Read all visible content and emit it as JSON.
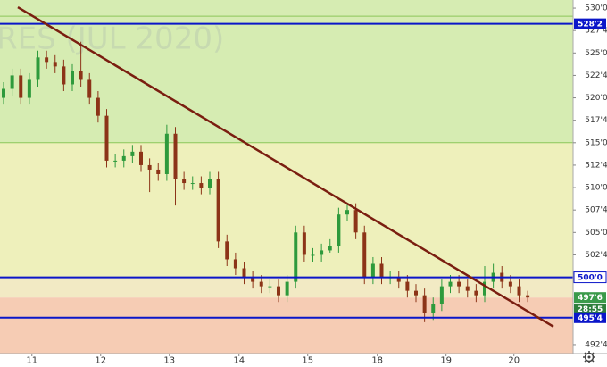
{
  "chart_data": {
    "type": "candlestick",
    "watermark": "RES (JUL 2020)",
    "countdown": "28:55",
    "up_color": "#2e9a3c",
    "down_color": "#8c3418",
    "ylim": [
      491.5,
      530.9
    ],
    "yticks": [
      {
        "value": 530,
        "label": "530'0"
      },
      {
        "value": 527.5,
        "label": "527'4"
      },
      {
        "value": 525,
        "label": "525'0"
      },
      {
        "value": 522.5,
        "label": "522'4"
      },
      {
        "value": 520,
        "label": "520'0"
      },
      {
        "value": 517.5,
        "label": "517'4"
      },
      {
        "value": 515,
        "label": "515'0"
      },
      {
        "value": 512.5,
        "label": "512'4"
      },
      {
        "value": 510,
        "label": "510'0"
      },
      {
        "value": 507.5,
        "label": "507'4"
      },
      {
        "value": 505,
        "label": "505'0"
      },
      {
        "value": 502.5,
        "label": "502'4"
      },
      {
        "value": 492.5,
        "label": "492'4"
      }
    ],
    "xticks": [
      {
        "value": 3.3,
        "label": "11"
      },
      {
        "value": 11.3,
        "label": "12"
      },
      {
        "value": 19.3,
        "label": "13"
      },
      {
        "value": 27.4,
        "label": "14"
      },
      {
        "value": 35.4,
        "label": "15"
      },
      {
        "value": 43.5,
        "label": "18"
      },
      {
        "value": 51.5,
        "label": "19"
      },
      {
        "value": 59.4,
        "label": "20"
      }
    ],
    "zones": [
      {
        "from": 515,
        "to": 530.9,
        "color": "#d6ecb2"
      },
      {
        "from": 500,
        "to": 515,
        "color": "#eef0bb"
      },
      {
        "from": 497.75,
        "to": 500,
        "color": "#f2eac4"
      },
      {
        "from": 491.5,
        "to": 497.75,
        "color": "#f6ccb4"
      }
    ],
    "thin_levels": [
      {
        "value": 529.1,
        "color": "#8cc65a"
      },
      {
        "value": 515,
        "color": "#8cc65a"
      }
    ],
    "levels": [
      {
        "value": 528.25,
        "color": "#0b16c9"
      },
      {
        "value": 500,
        "color": "#0b16c9"
      },
      {
        "value": 495.5,
        "color": "#0b16c9"
      }
    ],
    "trendline": {
      "x": [
        1.66,
        64
      ],
      "y": [
        530.1,
        494.5
      ],
      "color": "#7a1e10"
    },
    "price_labels": [
      {
        "value": 528.25,
        "label": "528'2",
        "color": "#0b16c9",
        "text_color": "#ffffff"
      },
      {
        "value": 500,
        "label": "500'0",
        "color": "#ffffff",
        "text_color": "#0b16c9"
      },
      {
        "value": 497.75,
        "label": "497'6",
        "color": "#3a9a4a",
        "text_color": "#ffffff"
      },
      {
        "value": 495.5,
        "label": "495'4",
        "color": "#0b16c9",
        "text_color": "#ffffff"
      }
    ],
    "open": [
      520,
      521,
      522.5,
      520,
      522,
      524.5,
      524,
      523.5,
      521.5,
      523,
      522,
      520,
      518,
      513,
      513,
      513.5,
      514,
      512.5,
      512,
      511.5,
      516,
      511,
      510.5,
      510.5,
      510,
      511,
      504,
      502,
      501,
      500,
      499.5,
      499,
      499,
      498,
      499.5,
      505,
      502.5,
      502.5,
      503,
      503.5,
      507,
      507.5,
      505,
      500,
      501.5,
      500,
      500,
      499.5,
      498.5,
      498,
      496,
      497,
      499,
      499.5,
      499,
      498.5,
      498,
      499.5,
      500.5,
      499.5,
      499,
      498
    ],
    "high": [
      521.75,
      523.25,
      523.25,
      522.75,
      525.25,
      525.25,
      524.75,
      524.25,
      523.75,
      526.25,
      522.75,
      520.75,
      518.75,
      513.75,
      514.25,
      514.75,
      514.75,
      513.25,
      512.75,
      517,
      516.75,
      511.75,
      511.25,
      511.25,
      511.75,
      511.75,
      504.75,
      502.75,
      501.75,
      500.75,
      500.25,
      499.75,
      499.75,
      500.25,
      505.75,
      505.75,
      503.25,
      503.75,
      504.25,
      507.75,
      508.25,
      508.25,
      505.75,
      502.25,
      502.25,
      500.75,
      500.75,
      500.25,
      499.25,
      498.75,
      497.75,
      499.75,
      500.25,
      500.25,
      499.75,
      499.25,
      501.25,
      501.5,
      501.25,
      500.25,
      499.75,
      498.5
    ],
    "low": [
      519.25,
      520.25,
      519.25,
      519.25,
      521.25,
      523.25,
      522.75,
      520.75,
      520.75,
      521.25,
      519.25,
      517.25,
      512.25,
      512.25,
      512.25,
      512.75,
      511.75,
      509.5,
      510.75,
      510.75,
      508,
      509.75,
      509.75,
      509.25,
      509.25,
      503.25,
      501.25,
      500.25,
      499.25,
      498.75,
      498.25,
      498.25,
      497.25,
      497.25,
      498.75,
      501.75,
      501.75,
      501.75,
      502.75,
      502.75,
      506.25,
      504.25,
      499.25,
      499.25,
      499.25,
      499.25,
      498.75,
      497.75,
      497.25,
      495,
      495.25,
      496.25,
      498.25,
      498.25,
      497.75,
      497.25,
      497.25,
      498.75,
      498.75,
      498.25,
      497.25,
      497.25
    ],
    "close": [
      521,
      522.5,
      520,
      522,
      524.5,
      524,
      523.5,
      521.5,
      523,
      522,
      520,
      518,
      513,
      513,
      513.5,
      514,
      512.5,
      512,
      511.5,
      516,
      511,
      510.5,
      510.5,
      510,
      511,
      504,
      502,
      501,
      500,
      499.5,
      499,
      499,
      498,
      499.5,
      505,
      502.5,
      502.5,
      503,
      503.5,
      507,
      507.5,
      505,
      500,
      501.5,
      500,
      500,
      499.5,
      498.5,
      498,
      496,
      497,
      499,
      499.5,
      499,
      498.5,
      498,
      499.5,
      500.5,
      499.5,
      499,
      498,
      497.75
    ]
  }
}
